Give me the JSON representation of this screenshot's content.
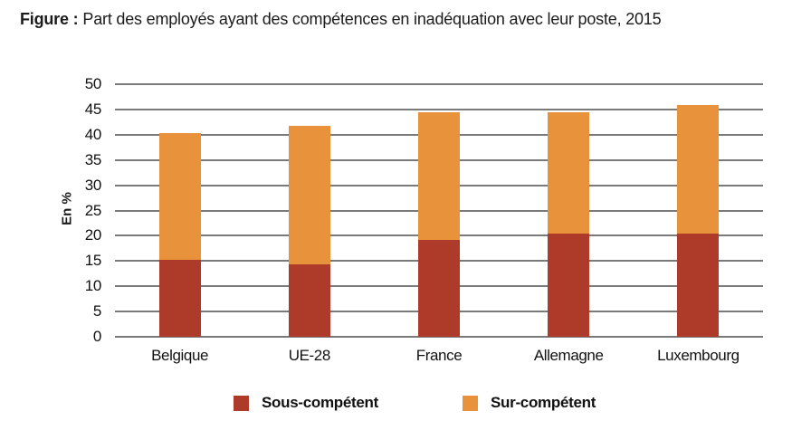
{
  "title": {
    "prefix": "Figure :",
    "text": "Part des employés ayant des compétences en inadéquation avec leur poste, 2015"
  },
  "chart_data": {
    "type": "bar",
    "stacked": true,
    "title": "Part des employés ayant des compétences en inadéquation avec leur poste, 2015",
    "categories": [
      "Belgique",
      "UE-28",
      "France",
      "Allemagne",
      "Luxembourg"
    ],
    "series": [
      {
        "name": "Sous-compétent",
        "color": "#ae3b2a",
        "values": [
          15.2,
          14.3,
          19.2,
          20.4,
          20.4
        ]
      },
      {
        "name": "Sur-compétent",
        "color": "#e8923b",
        "values": [
          25.1,
          27.4,
          25.2,
          24.0,
          25.5
        ]
      }
    ],
    "totals": [
      40.3,
      41.7,
      44.4,
      44.4,
      45.9
    ],
    "xlabel": "",
    "ylabel": "En %",
    "ylim": [
      0,
      50
    ],
    "ytick_step": 5,
    "yticks": [
      0,
      5,
      10,
      15,
      20,
      25,
      30,
      35,
      40,
      45,
      50
    ],
    "grid": true,
    "gridline_color": "#7a7a7a",
    "legend_position": "bottom"
  }
}
